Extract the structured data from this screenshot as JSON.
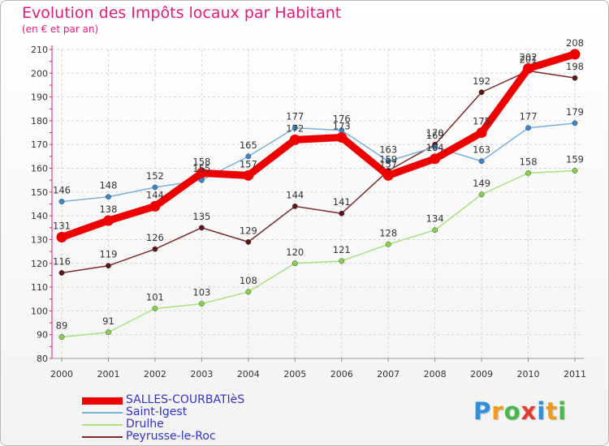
{
  "header": {
    "title": "Evolution des Impôts locaux par Habitant",
    "subtitle": "(en € et par an)"
  },
  "brand": {
    "letters": [
      "P",
      "r",
      "o",
      "x",
      "i",
      "t",
      "i"
    ],
    "colors": [
      "#2f8fd8",
      "#f29a1a",
      "#49b84a",
      "#e63b2e",
      "#2f8fd8",
      "#f29a1a",
      "#49b84a"
    ]
  },
  "chart_data": {
    "type": "line",
    "title": "Evolution des Impôts locaux par Habitant",
    "subtitle": "(en € et par an)",
    "xlabel": "",
    "ylabel": "",
    "categories": [
      "2000",
      "2001",
      "2002",
      "2003",
      "2004",
      "2005",
      "2006",
      "2007",
      "2008",
      "2009",
      "2010",
      "2011"
    ],
    "ylim": [
      80,
      210
    ],
    "yticks": [
      80,
      90,
      100,
      110,
      120,
      130,
      140,
      150,
      160,
      170,
      180,
      190,
      200,
      210
    ],
    "grid": true,
    "legend": "bottom-left",
    "series": [
      {
        "name": "Drulhe",
        "color": "#a8e27e",
        "dot": "#88d24a",
        "values": [
          89,
          91,
          101,
          103,
          108,
          120,
          121,
          128,
          134,
          149,
          158,
          159
        ]
      },
      {
        "name": "Peyrusse-le-Roc",
        "color": "#7a2a2a",
        "dot": "#5e1414",
        "values": [
          116,
          119,
          126,
          135,
          129,
          144,
          141,
          159,
          170,
          192,
          201,
          198
        ]
      },
      {
        "name": "Saint-Igest",
        "color": "#7ab0dc",
        "dot": "#3a86cc",
        "values": [
          146,
          148,
          152,
          155,
          165,
          177,
          176,
          163,
          169,
          163,
          177,
          179
        ]
      },
      {
        "name": "SALLES-COURBATIèS",
        "color": "#ee0000",
        "dot": "#ee0000",
        "values": [
          131,
          138,
          144,
          158,
          157,
          172,
          173,
          157,
          164,
          175,
          202,
          208
        ]
      }
    ],
    "legend_order": [
      "SALLES-COURBATIèS",
      "Saint-Igest",
      "Drulhe",
      "Peyrusse-le-Roc"
    ]
  }
}
